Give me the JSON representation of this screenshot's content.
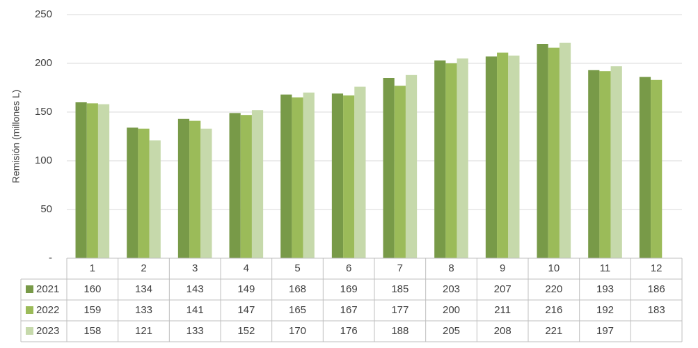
{
  "chart_data": {
    "type": "bar",
    "y_label": "Remisión (millones L)",
    "categories": [
      "1",
      "2",
      "3",
      "4",
      "5",
      "6",
      "7",
      "8",
      "9",
      "10",
      "11",
      "12"
    ],
    "series": [
      {
        "name": "2021",
        "color": "#789a48",
        "values": [
          160,
          134,
          143,
          149,
          168,
          169,
          185,
          203,
          207,
          220,
          193,
          186
        ]
      },
      {
        "name": "2022",
        "color": "#9bbb59",
        "values": [
          159,
          133,
          141,
          147,
          165,
          167,
          177,
          200,
          211,
          216,
          192,
          183
        ]
      },
      {
        "name": "2023",
        "color": "#c6d9ab",
        "values": [
          158,
          121,
          133,
          152,
          170,
          176,
          188,
          205,
          208,
          221,
          197,
          null
        ]
      }
    ],
    "ylim": [
      0,
      250
    ],
    "yticks": [
      {
        "value": 0,
        "label": "-"
      },
      50,
      100,
      150,
      200,
      250
    ],
    "grid": true,
    "data_table": true
  }
}
